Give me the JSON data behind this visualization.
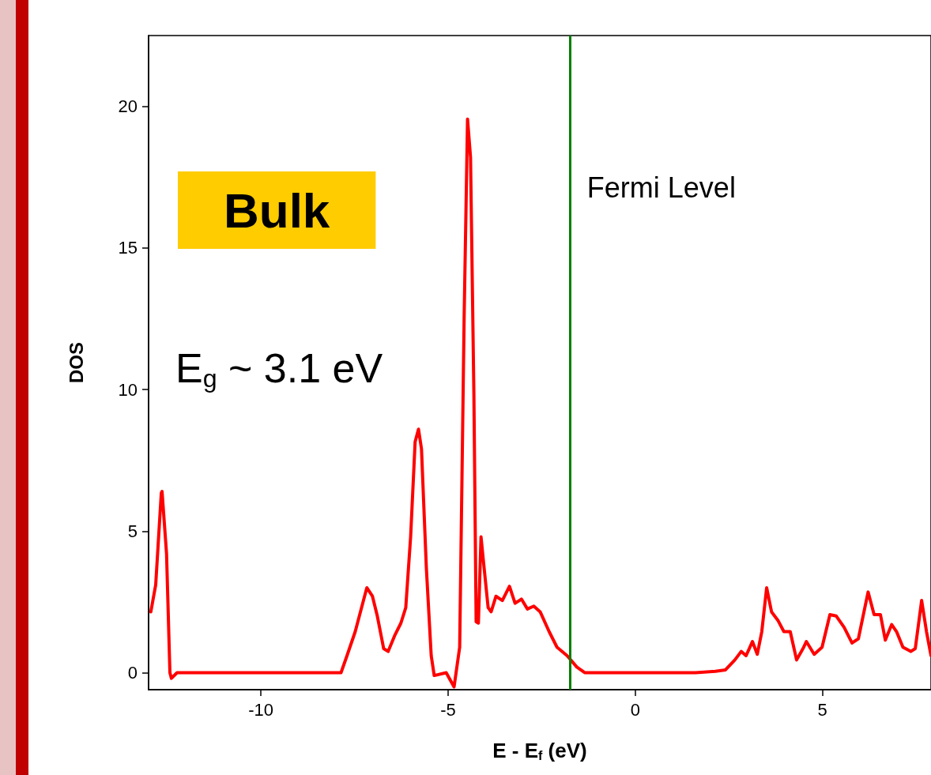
{
  "chart_data": {
    "type": "line",
    "xlabel": "E - E$_{f}$ (eV)",
    "ylabel": "DOS",
    "annotations": [
      "Bulk",
      "E$_{g}$ ~ 3.1 eV"
    ],
    "ref_lines": [
      {
        "axis": "x",
        "value": -1.75,
        "label": "Fermi Level",
        "color": "#008000"
      }
    ],
    "xlim": [
      -13,
      7.9
    ],
    "ylim": [
      -0.6,
      22.5
    ],
    "xticks": [
      -10,
      -5,
      0,
      5
    ],
    "yticks": [
      0,
      5,
      10,
      15,
      20
    ],
    "grid": false,
    "marker": "none",
    "line_style": "solid",
    "series": [
      {
        "color": "#ff0000",
        "x": [
          -12.94,
          -12.81,
          -12.66,
          -12.64,
          -12.52,
          -12.43,
          -12.39,
          -12.24,
          -7.86,
          -7.7,
          -7.48,
          -7.31,
          -7.17,
          -7.02,
          -6.89,
          -6.72,
          -6.6,
          -6.43,
          -6.26,
          -6.13,
          -6.0,
          -5.88,
          -5.79,
          -5.71,
          -5.58,
          -5.45,
          -5.37,
          -5.05,
          -4.84,
          -4.69,
          -4.57,
          -4.48,
          -4.4,
          -4.31,
          -4.25,
          -4.19,
          -4.12,
          -4.06,
          -3.93,
          -3.85,
          -3.72,
          -3.55,
          -3.36,
          -3.21,
          -3.04,
          -2.88,
          -2.71,
          -2.54,
          -2.3,
          -2.09,
          -1.82,
          -1.56,
          -1.35,
          1.61,
          2.14,
          2.41,
          2.66,
          2.83,
          2.96,
          3.13,
          3.26,
          3.38,
          3.51,
          3.64,
          3.81,
          3.97,
          4.14,
          4.31,
          4.48,
          4.57,
          4.78,
          4.99,
          5.2,
          5.37,
          5.58,
          5.79,
          5.96,
          6.22,
          6.38,
          6.55,
          6.68,
          6.85,
          6.98,
          7.15,
          7.36,
          7.48,
          7.65,
          7.78,
          7.9
        ],
        "values": [
          2.15,
          3.1,
          6.35,
          6.4,
          4.2,
          0,
          -0.2,
          0,
          0,
          0.6,
          1.45,
          2.3,
          3.0,
          2.7,
          2.0,
          0.85,
          0.75,
          1.3,
          1.75,
          2.3,
          4.8,
          8.15,
          8.6,
          7.9,
          3.7,
          0.6,
          -0.1,
          0,
          -0.5,
          0.9,
          12.6,
          19.55,
          18.2,
          9.8,
          1.8,
          1.75,
          4.8,
          4.0,
          2.3,
          2.15,
          2.7,
          2.55,
          3.05,
          2.45,
          2.6,
          2.25,
          2.35,
          2.15,
          1.45,
          0.9,
          0.6,
          0.2,
          0,
          0,
          0.05,
          0.1,
          0.45,
          0.75,
          0.6,
          1.1,
          0.65,
          1.45,
          3.0,
          2.15,
          1.85,
          1.45,
          1.45,
          0.45,
          0.85,
          1.1,
          0.65,
          0.9,
          2.05,
          2.0,
          1.6,
          1.05,
          1.2,
          2.85,
          2.05,
          2.05,
          1.15,
          1.7,
          1.45,
          0.9,
          0.75,
          0.85,
          2.55,
          1.45,
          0.6
        ]
      }
    ]
  }
}
